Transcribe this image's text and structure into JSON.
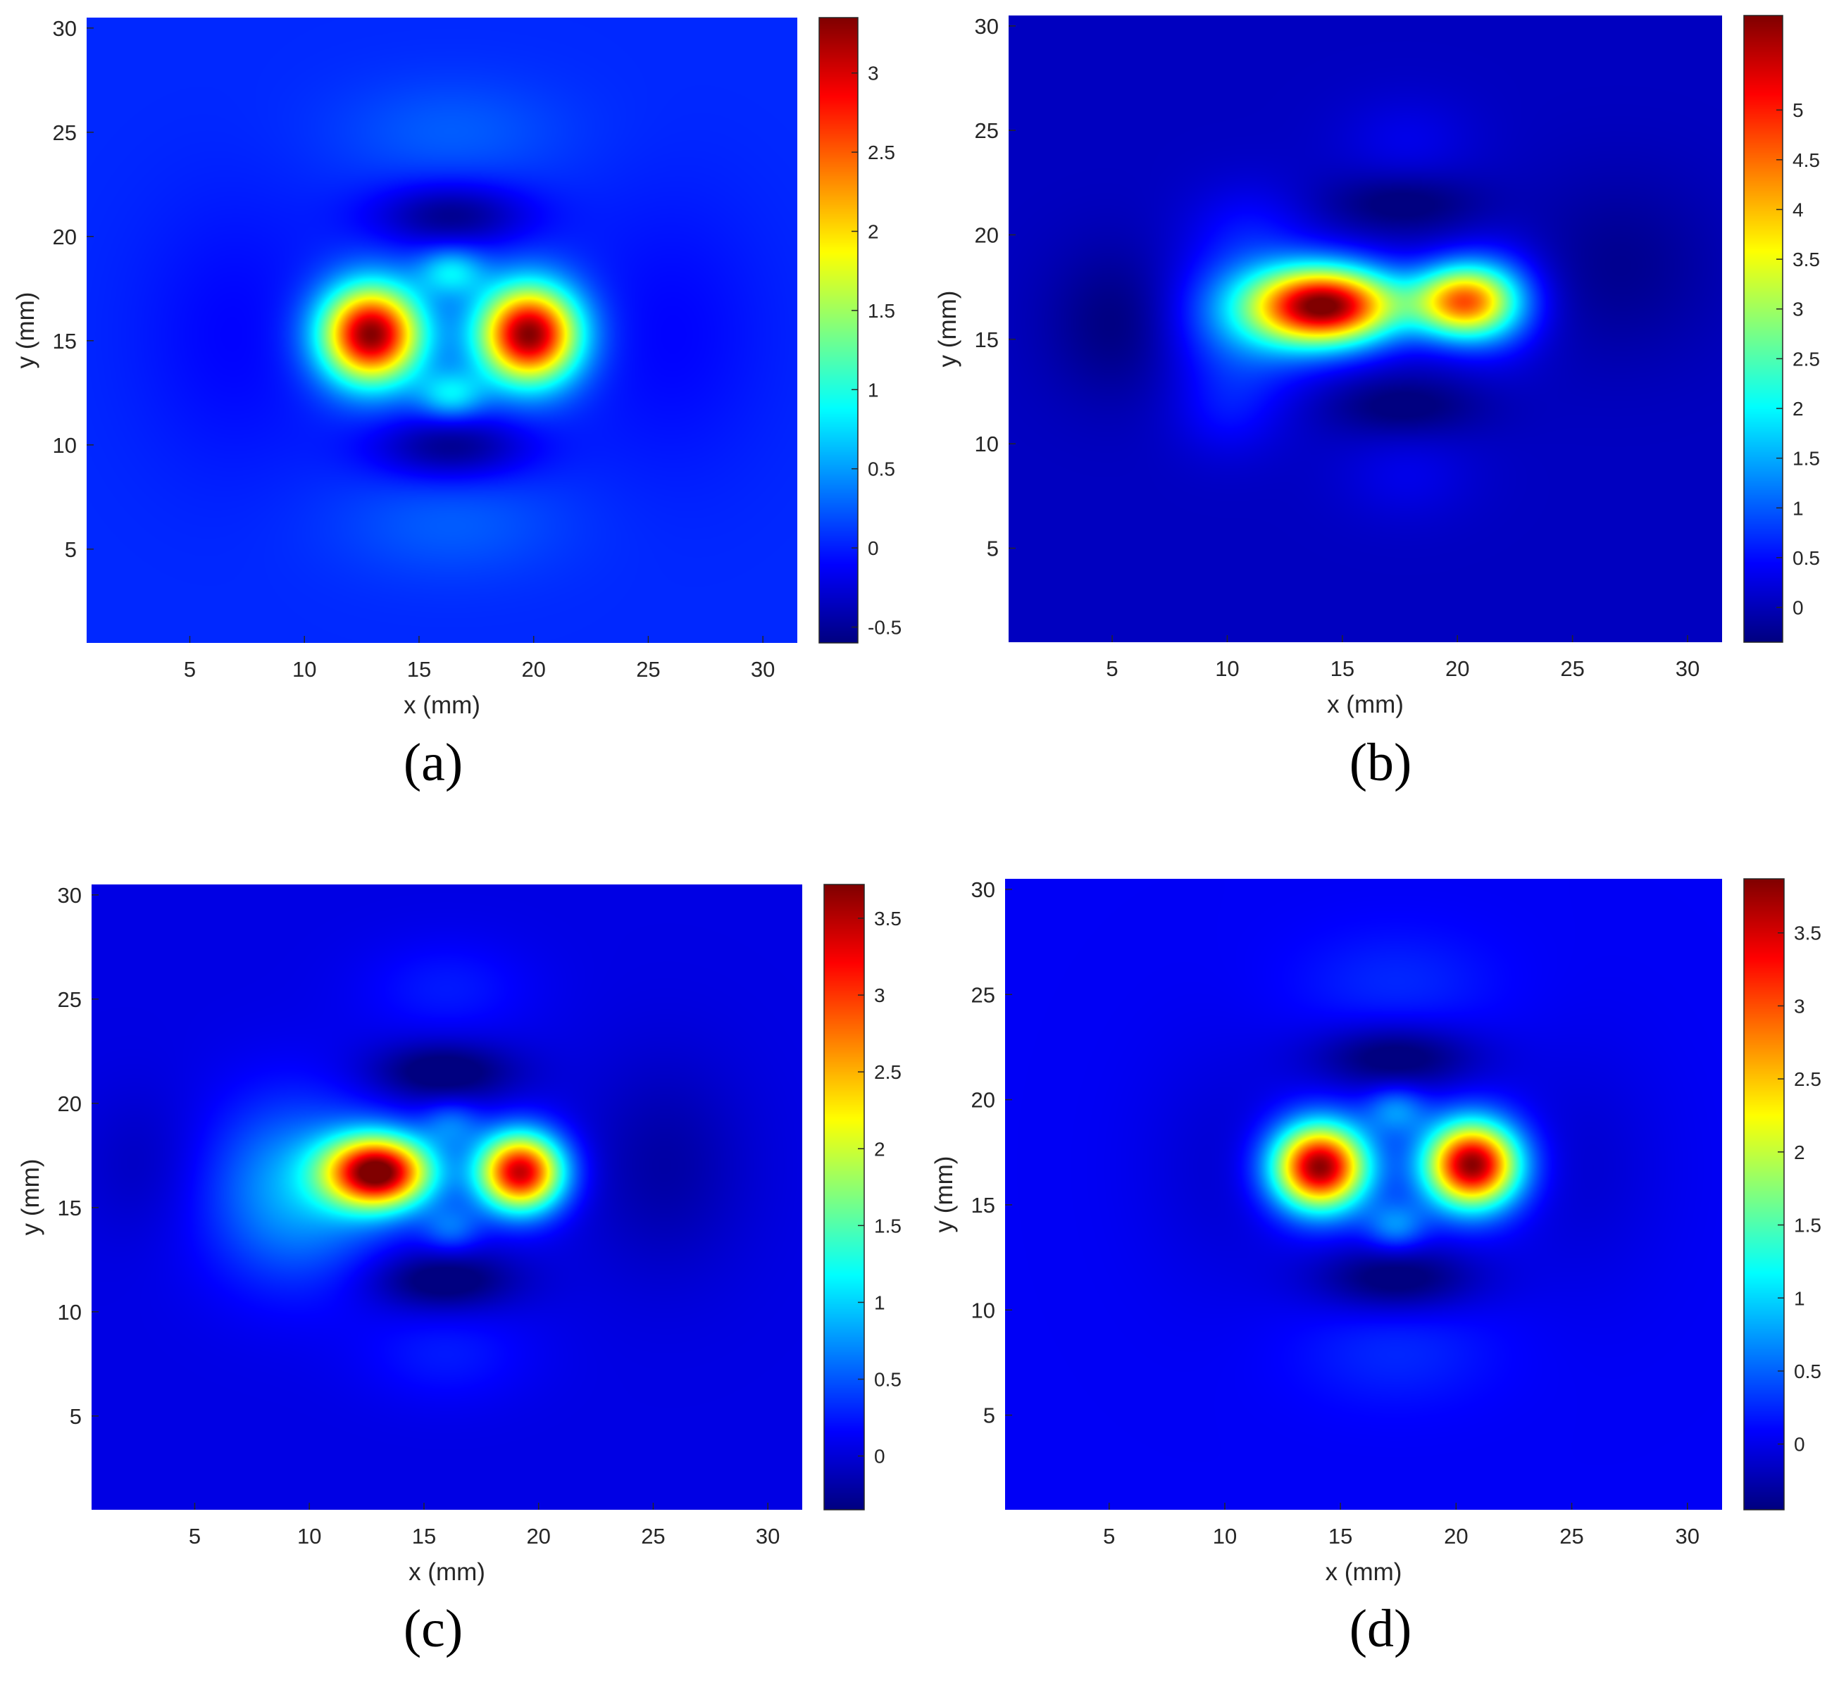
{
  "colormap": "jet",
  "chart_data": [
    {
      "panel": "a",
      "type": "heatmap",
      "caption": "(a)",
      "xlabel": "x (mm)",
      "ylabel": "y (mm)",
      "xlim": [
        0.5,
        31.5
      ],
      "ylim": [
        0.5,
        30.5
      ],
      "xticks": [
        5,
        10,
        15,
        20,
        25,
        30
      ],
      "yticks": [
        5,
        10,
        15,
        20,
        25,
        30
      ],
      "colorbar": {
        "min": -0.6,
        "max": 3.35,
        "ticks": [
          -0.5,
          0,
          0.5,
          1,
          1.5,
          2,
          2.5,
          3
        ]
      },
      "background": 0.05,
      "features": [
        {
          "kind": "peak",
          "x": 12.9,
          "y": 15.3,
          "sx": 1.5,
          "sy": 1.6,
          "amp": 3.3
        },
        {
          "kind": "peak",
          "x": 19.8,
          "y": 15.3,
          "sx": 1.5,
          "sy": 1.6,
          "amp": 3.3
        },
        {
          "kind": "peak",
          "x": 16.4,
          "y": 18.3,
          "sx": 1.0,
          "sy": 0.8,
          "amp": 0.75
        },
        {
          "kind": "peak",
          "x": 16.4,
          "y": 12.4,
          "sx": 1.0,
          "sy": 0.8,
          "amp": 0.75
        },
        {
          "kind": "trough",
          "x": 16.4,
          "y": 21.0,
          "sx": 2.4,
          "sy": 1.1,
          "amp": -0.6
        },
        {
          "kind": "trough",
          "x": 16.4,
          "y": 9.9,
          "sx": 2.4,
          "sy": 1.1,
          "amp": -0.6
        },
        {
          "kind": "halo",
          "x": 16.4,
          "y": 25.0,
          "sx": 3.5,
          "sy": 1.8,
          "amp": 0.2
        },
        {
          "kind": "halo",
          "x": 16.4,
          "y": 6.2,
          "sx": 3.5,
          "sy": 1.8,
          "amp": 0.2
        },
        {
          "kind": "trough",
          "x": 7.0,
          "y": 15.3,
          "sx": 3.0,
          "sy": 4.5,
          "amp": -0.15
        },
        {
          "kind": "trough",
          "x": 26.0,
          "y": 15.3,
          "sx": 3.0,
          "sy": 4.5,
          "amp": -0.15
        }
      ]
    },
    {
      "panel": "b",
      "type": "heatmap",
      "caption": "(b)",
      "xlabel": "x (mm)",
      "ylabel": "y (mm)",
      "xlim": [
        0.5,
        31.5
      ],
      "ylim": [
        0.5,
        30.5
      ],
      "xticks": [
        5,
        10,
        15,
        20,
        25,
        30
      ],
      "yticks": [
        5,
        10,
        15,
        20,
        25,
        30
      ],
      "colorbar": {
        "min": -0.35,
        "max": 5.95,
        "ticks": [
          0,
          0.5,
          1,
          1.5,
          2,
          2.5,
          3,
          3.5,
          4,
          4.5,
          5
        ]
      },
      "background": 0.05,
      "features": [
        {
          "kind": "peak",
          "x": 14.3,
          "y": 16.6,
          "sx": 2.2,
          "sy": 1.3,
          "amp": 5.7
        },
        {
          "kind": "peak",
          "x": 20.2,
          "y": 16.8,
          "sx": 1.5,
          "sy": 1.2,
          "amp": 4.0
        },
        {
          "kind": "halo",
          "x": 10.8,
          "y": 16.0,
          "sx": 2.4,
          "sy": 2.4,
          "amp": 1.1
        },
        {
          "kind": "halo",
          "x": 21.8,
          "y": 16.8,
          "sx": 1.5,
          "sy": 1.8,
          "amp": 0.9
        },
        {
          "kind": "halo",
          "x": 10.0,
          "y": 11.5,
          "sx": 1.6,
          "sy": 1.5,
          "amp": 0.35
        },
        {
          "kind": "halo",
          "x": 11.0,
          "y": 20.5,
          "sx": 1.8,
          "sy": 1.5,
          "amp": 0.3
        },
        {
          "kind": "trough",
          "x": 17.6,
          "y": 21.5,
          "sx": 2.4,
          "sy": 1.0,
          "amp": -0.5
        },
        {
          "kind": "trough",
          "x": 17.6,
          "y": 11.8,
          "sx": 2.4,
          "sy": 1.0,
          "amp": -0.5
        },
        {
          "kind": "trough",
          "x": 5.5,
          "y": 15.8,
          "sx": 2.2,
          "sy": 2.5,
          "amp": -0.45
        },
        {
          "kind": "trough",
          "x": 27.0,
          "y": 18.5,
          "sx": 3.0,
          "sy": 3.0,
          "amp": -0.3
        },
        {
          "kind": "halo",
          "x": 17.8,
          "y": 24.5,
          "sx": 2.0,
          "sy": 1.5,
          "amp": 0.25
        },
        {
          "kind": "halo",
          "x": 17.8,
          "y": 8.5,
          "sx": 2.0,
          "sy": 1.5,
          "amp": 0.25
        }
      ]
    },
    {
      "panel": "c",
      "type": "heatmap",
      "caption": "(c)",
      "xlabel": "x (mm)",
      "ylabel": "y (mm)",
      "xlim": [
        0.5,
        31.5
      ],
      "ylim": [
        0.5,
        30.5
      ],
      "xticks": [
        5,
        10,
        15,
        20,
        25,
        30
      ],
      "yticks": [
        5,
        10,
        15,
        20,
        25,
        30
      ],
      "colorbar": {
        "min": -0.35,
        "max": 3.72,
        "ticks": [
          0,
          0.5,
          1,
          1.5,
          2,
          2.5,
          3,
          3.5
        ]
      },
      "background": 0.05,
      "features": [
        {
          "kind": "peak",
          "x": 13.0,
          "y": 16.7,
          "sx": 1.6,
          "sy": 1.2,
          "amp": 3.6
        },
        {
          "kind": "peak",
          "x": 19.2,
          "y": 16.7,
          "sx": 1.3,
          "sy": 1.3,
          "amp": 3.4
        },
        {
          "kind": "halo",
          "x": 9.5,
          "y": 15.8,
          "sx": 2.8,
          "sy": 3.0,
          "amp": 0.8
        },
        {
          "kind": "halo",
          "x": 16.2,
          "y": 19.0,
          "sx": 0.9,
          "sy": 0.8,
          "amp": 0.5
        },
        {
          "kind": "halo",
          "x": 16.2,
          "y": 14.0,
          "sx": 0.9,
          "sy": 0.8,
          "amp": 0.5
        },
        {
          "kind": "trough",
          "x": 15.8,
          "y": 21.5,
          "sx": 2.2,
          "sy": 1.0,
          "amp": -0.55
        },
        {
          "kind": "trough",
          "x": 15.8,
          "y": 11.5,
          "sx": 2.2,
          "sy": 1.0,
          "amp": -0.55
        },
        {
          "kind": "trough",
          "x": 25.5,
          "y": 17.0,
          "sx": 2.5,
          "sy": 3.5,
          "amp": -0.25
        },
        {
          "kind": "trough",
          "x": 3.0,
          "y": 17.0,
          "sx": 2.0,
          "sy": 2.5,
          "amp": -0.15
        },
        {
          "kind": "halo",
          "x": 16.0,
          "y": 25.5,
          "sx": 2.5,
          "sy": 1.6,
          "amp": 0.2
        },
        {
          "kind": "halo",
          "x": 16.0,
          "y": 8.0,
          "sx": 2.5,
          "sy": 1.6,
          "amp": 0.2
        }
      ]
    },
    {
      "panel": "d",
      "type": "heatmap",
      "caption": "(d)",
      "xlabel": "x (mm)",
      "ylabel": "y (mm)",
      "xlim": [
        0.5,
        31.5
      ],
      "ylim": [
        0.5,
        30.5
      ],
      "xticks": [
        5,
        10,
        15,
        20,
        25,
        30
      ],
      "yticks": [
        5,
        10,
        15,
        20,
        25,
        30
      ],
      "colorbar": {
        "min": -0.45,
        "max": 3.87,
        "ticks": [
          0,
          0.5,
          1,
          1.5,
          2,
          2.5,
          3,
          3.5
        ]
      },
      "background": 0.05,
      "features": [
        {
          "kind": "peak",
          "x": 14.1,
          "y": 16.8,
          "sx": 1.4,
          "sy": 1.4,
          "amp": 3.8
        },
        {
          "kind": "peak",
          "x": 20.7,
          "y": 16.9,
          "sx": 1.4,
          "sy": 1.4,
          "amp": 3.8
        },
        {
          "kind": "halo",
          "x": 17.4,
          "y": 19.5,
          "sx": 0.9,
          "sy": 0.8,
          "amp": 0.65
        },
        {
          "kind": "halo",
          "x": 17.4,
          "y": 14.0,
          "sx": 0.9,
          "sy": 0.8,
          "amp": 0.65
        },
        {
          "kind": "trough",
          "x": 17.4,
          "y": 22.0,
          "sx": 2.5,
          "sy": 1.1,
          "amp": -0.6
        },
        {
          "kind": "trough",
          "x": 17.4,
          "y": 11.5,
          "sx": 2.5,
          "sy": 1.1,
          "amp": -0.6
        },
        {
          "kind": "halo",
          "x": 17.4,
          "y": 25.5,
          "sx": 3.0,
          "sy": 1.8,
          "amp": 0.2
        },
        {
          "kind": "halo",
          "x": 17.4,
          "y": 8.0,
          "sx": 3.0,
          "sy": 1.8,
          "amp": 0.2
        },
        {
          "kind": "trough",
          "x": 10.0,
          "y": 16.8,
          "sx": 2.5,
          "sy": 4.0,
          "amp": -0.15
        },
        {
          "kind": "trough",
          "x": 25.5,
          "y": 16.8,
          "sx": 2.5,
          "sy": 4.0,
          "amp": -0.15
        }
      ]
    }
  ]
}
